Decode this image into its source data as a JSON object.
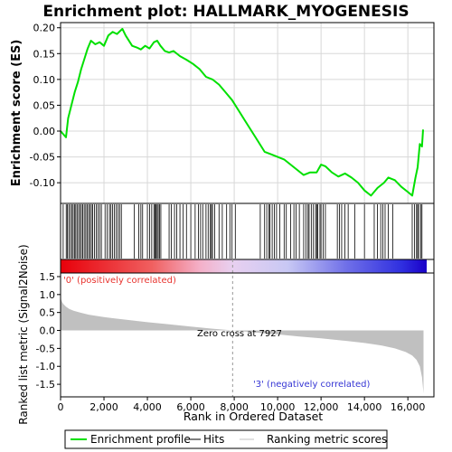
{
  "chart_data": {
    "type": "line",
    "title": "Enrichment plot: HALLMARK_MYOGENESIS",
    "panels": {
      "enrichment": {
        "ylabel": "Enrichment score (ES)",
        "ylim": [
          -0.14,
          0.21
        ],
        "yticks": [
          -0.1,
          -0.05,
          0.0,
          0.05,
          0.1,
          0.15,
          0.2
        ],
        "ytick_labels": [
          "-0.10",
          "-0.05",
          "0.00",
          "0.05",
          "0.10",
          "0.15",
          "0.20"
        ],
        "grid": true,
        "series": [
          {
            "name": "Enrichment profile",
            "color": "#00e000",
            "x": [
              0,
              250,
              350,
              500,
              650,
              800,
              950,
              1100,
              1250,
              1400,
              1600,
              1800,
              2000,
              2200,
              2400,
              2600,
              2850,
              3000,
              3300,
              3500,
              3700,
              3900,
              4100,
              4300,
              4450,
              4600,
              4800,
              5000,
              5200,
              5500,
              5800,
              6100,
              6400,
              6700,
              7000,
              7300,
              7600,
              7900,
              8200,
              8500,
              8800,
              9100,
              9400,
              9700,
              10000,
              10300,
              10600,
              10900,
              11200,
              11500,
              11800,
              12000,
              12200,
              12500,
              12800,
              13100,
              13400,
              13700,
              14000,
              14300,
              14600,
              14900,
              15100,
              15400,
              15700,
              16000,
              16200,
              16350,
              16450,
              16550,
              16650,
              16700
            ],
            "y": [
              0.0,
              -0.012,
              0.025,
              0.05,
              0.075,
              0.095,
              0.12,
              0.14,
              0.16,
              0.175,
              0.168,
              0.172,
              0.165,
              0.185,
              0.192,
              0.188,
              0.198,
              0.185,
              0.165,
              0.162,
              0.158,
              0.165,
              0.16,
              0.172,
              0.175,
              0.165,
              0.155,
              0.152,
              0.155,
              0.145,
              0.138,
              0.13,
              0.12,
              0.105,
              0.1,
              0.09,
              0.075,
              0.06,
              0.04,
              0.02,
              0.0,
              -0.02,
              -0.04,
              -0.045,
              -0.05,
              -0.055,
              -0.065,
              -0.075,
              -0.085,
              -0.08,
              -0.08,
              -0.065,
              -0.068,
              -0.08,
              -0.088,
              -0.082,
              -0.09,
              -0.1,
              -0.115,
              -0.125,
              -0.11,
              -0.1,
              -0.09,
              -0.095,
              -0.108,
              -0.118,
              -0.125,
              -0.09,
              -0.07,
              -0.025,
              -0.03,
              0.003
            ]
          }
        ]
      },
      "hits": {
        "legend_name": "Hits",
        "color": "#000000",
        "positions": [
          120,
          260,
          310,
          380,
          450,
          520,
          580,
          640,
          700,
          760,
          830,
          900,
          960,
          1020,
          1090,
          1160,
          1220,
          1290,
          1350,
          1420,
          1480,
          1560,
          1640,
          1720,
          1800,
          1880,
          2050,
          2150,
          2250,
          2320,
          2400,
          2480,
          2560,
          2650,
          2720,
          2800,
          3400,
          3600,
          3700,
          3780,
          4000,
          4100,
          4200,
          4300,
          4350,
          4400,
          4450,
          4500,
          4560,
          4620,
          5000,
          5100,
          5250,
          5350,
          5500,
          5650,
          5800,
          6000,
          6200,
          6350,
          6450,
          6550,
          6700,
          6800,
          6900,
          6950,
          7000,
          7100,
          7300,
          7450,
          7650,
          7800,
          7900,
          8050,
          9200,
          9400,
          9500,
          9600,
          9650,
          9750,
          9850,
          9950,
          10100,
          10300,
          10400,
          10600,
          10750,
          10850,
          11000,
          11200,
          11300,
          11400,
          11450,
          11550,
          11650,
          11750,
          11800,
          11850,
          11950,
          12000,
          12100,
          12200,
          12750,
          12850,
          12950,
          13100,
          13250,
          13550,
          14000,
          14450,
          14600,
          14750,
          14850,
          14950,
          15100,
          15300,
          16200,
          16300,
          16400,
          16450,
          16500,
          16600,
          16650
        ]
      },
      "ranking": {
        "ylabel": "Ranked list metric (Signal2Noise)",
        "xlabel": "Rank in Ordered Dataset",
        "legend_name": "Ranking metric scores",
        "color": "#c0c0c0",
        "xlim": [
          0,
          17200
        ],
        "ylim": [
          -1.85,
          1.6
        ],
        "xticks": [
          0,
          2000,
          4000,
          6000,
          8000,
          10000,
          12000,
          14000,
          16000
        ],
        "xtick_labels": [
          "0",
          "2,000",
          "4,000",
          "6,000",
          "8,000",
          "10,000",
          "12,000",
          "14,000",
          "16,000"
        ],
        "yticks": [
          -1.5,
          -1.0,
          -0.5,
          0.0,
          0.5,
          1.0,
          1.5
        ],
        "ytick_labels": [
          "-1.5",
          "-1.0",
          "-0.5",
          "0.0",
          "0.5",
          "1.0",
          "1.5"
        ],
        "x": [
          0,
          30,
          80,
          150,
          250,
          400,
          600,
          900,
          1300,
          2000,
          3000,
          4000,
          5000,
          6000,
          7000,
          7927,
          9000,
          10000,
          11000,
          12000,
          13000,
          14000,
          14800,
          15400,
          15900,
          16200,
          16400,
          16550,
          16650,
          16720
        ],
        "y": [
          1.0,
          0.85,
          0.78,
          0.72,
          0.66,
          0.6,
          0.55,
          0.5,
          0.44,
          0.37,
          0.3,
          0.23,
          0.17,
          0.11,
          0.05,
          0.0,
          -0.06,
          -0.11,
          -0.17,
          -0.22,
          -0.28,
          -0.35,
          -0.42,
          -0.5,
          -0.6,
          -0.7,
          -0.82,
          -1.0,
          -1.3,
          -1.75
        ]
      }
    },
    "annotations": {
      "positive": "'0' (positively correlated)",
      "negative": "'3' (negatively correlated)",
      "zero_cross": "Zero cross at 7927",
      "zero_cross_value": 7927
    },
    "legend": {
      "placement": "bottom",
      "entries": [
        "Enrichment profile",
        "Hits",
        "Ranking metric scores"
      ]
    }
  }
}
